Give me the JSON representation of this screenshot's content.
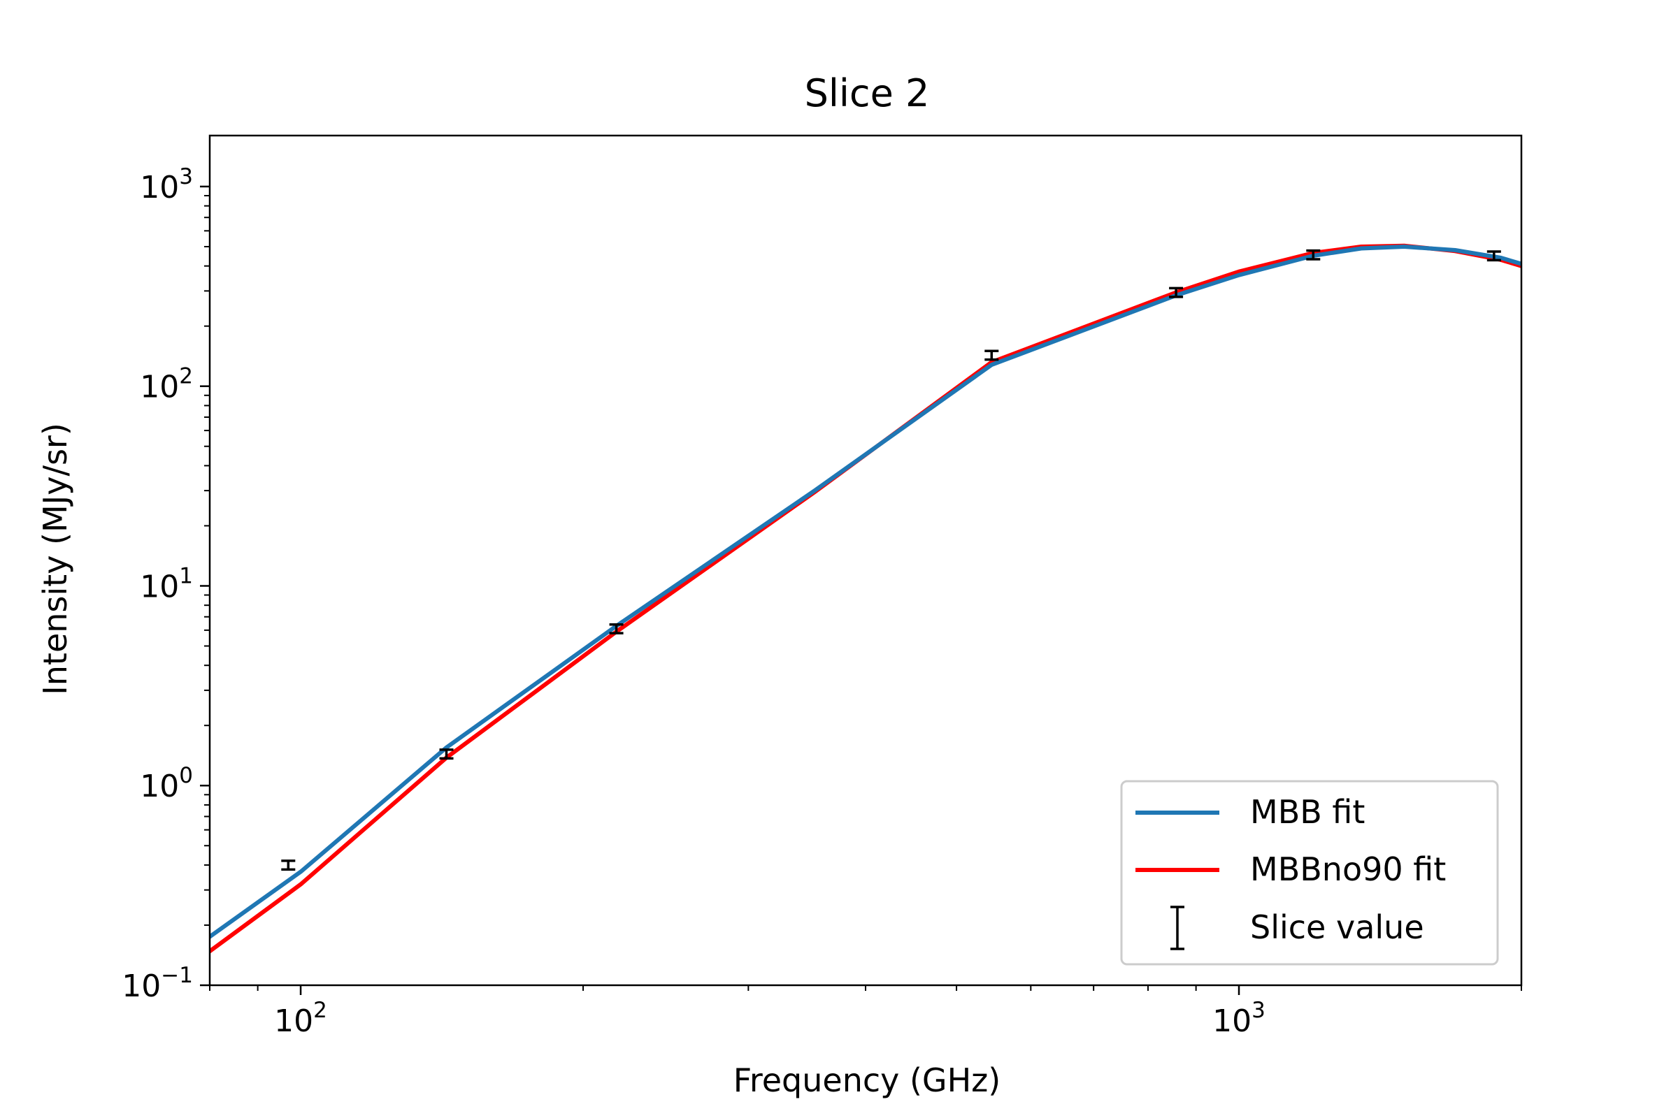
{
  "chart_data": {
    "type": "line",
    "title": "Slice 2",
    "xlabel": "Frequency (GHz)",
    "ylabel": "Intensity (MJy/sr)",
    "xscale": "log",
    "yscale": "log",
    "xlim": [
      80,
      2000
    ],
    "ylim": [
      0.1,
      1800
    ],
    "x_ticks": [
      {
        "value": 100,
        "base": "10",
        "exp": "2"
      },
      {
        "value": 1000,
        "base": "10",
        "exp": "3"
      }
    ],
    "y_ticks": [
      {
        "value": 0.1,
        "base": "10",
        "exp": "−1"
      },
      {
        "value": 1,
        "base": "10",
        "exp": "0"
      },
      {
        "value": 10,
        "base": "10",
        "exp": "1"
      },
      {
        "value": 100,
        "base": "10",
        "exp": "2"
      },
      {
        "value": 1000,
        "base": "10",
        "exp": "3"
      }
    ],
    "grid": false,
    "legend_position": "lower-right",
    "series": [
      {
        "name": "MBB fit",
        "color": "#1f77b4",
        "x": [
          80,
          100,
          143,
          217,
          353,
          545,
          857,
          1000,
          1200,
          1350,
          1500,
          1700,
          1900,
          2000
        ],
        "y": [
          0.175,
          0.37,
          1.55,
          6.3,
          30,
          128,
          285,
          360,
          450,
          490,
          500,
          480,
          440,
          410
        ]
      },
      {
        "name": "MBBno90 fit",
        "color": "#ff0000",
        "x": [
          80,
          100,
          143,
          217,
          353,
          545,
          857,
          1000,
          1200,
          1350,
          1500,
          1700,
          1900,
          2000
        ],
        "y": [
          0.148,
          0.32,
          1.38,
          5.9,
          29.5,
          132,
          295,
          375,
          465,
          500,
          505,
          475,
          430,
          400
        ]
      }
    ],
    "points": {
      "name": "Slice value",
      "color": "#000000",
      "x": [
        97,
        143,
        217,
        545,
        857,
        1200,
        1870
      ],
      "y": [
        0.4,
        1.44,
        6.1,
        143,
        295,
        455,
        450
      ],
      "yerr_rel": [
        0.05,
        0.05,
        0.05,
        0.05,
        0.05,
        0.05,
        0.05
      ]
    }
  }
}
